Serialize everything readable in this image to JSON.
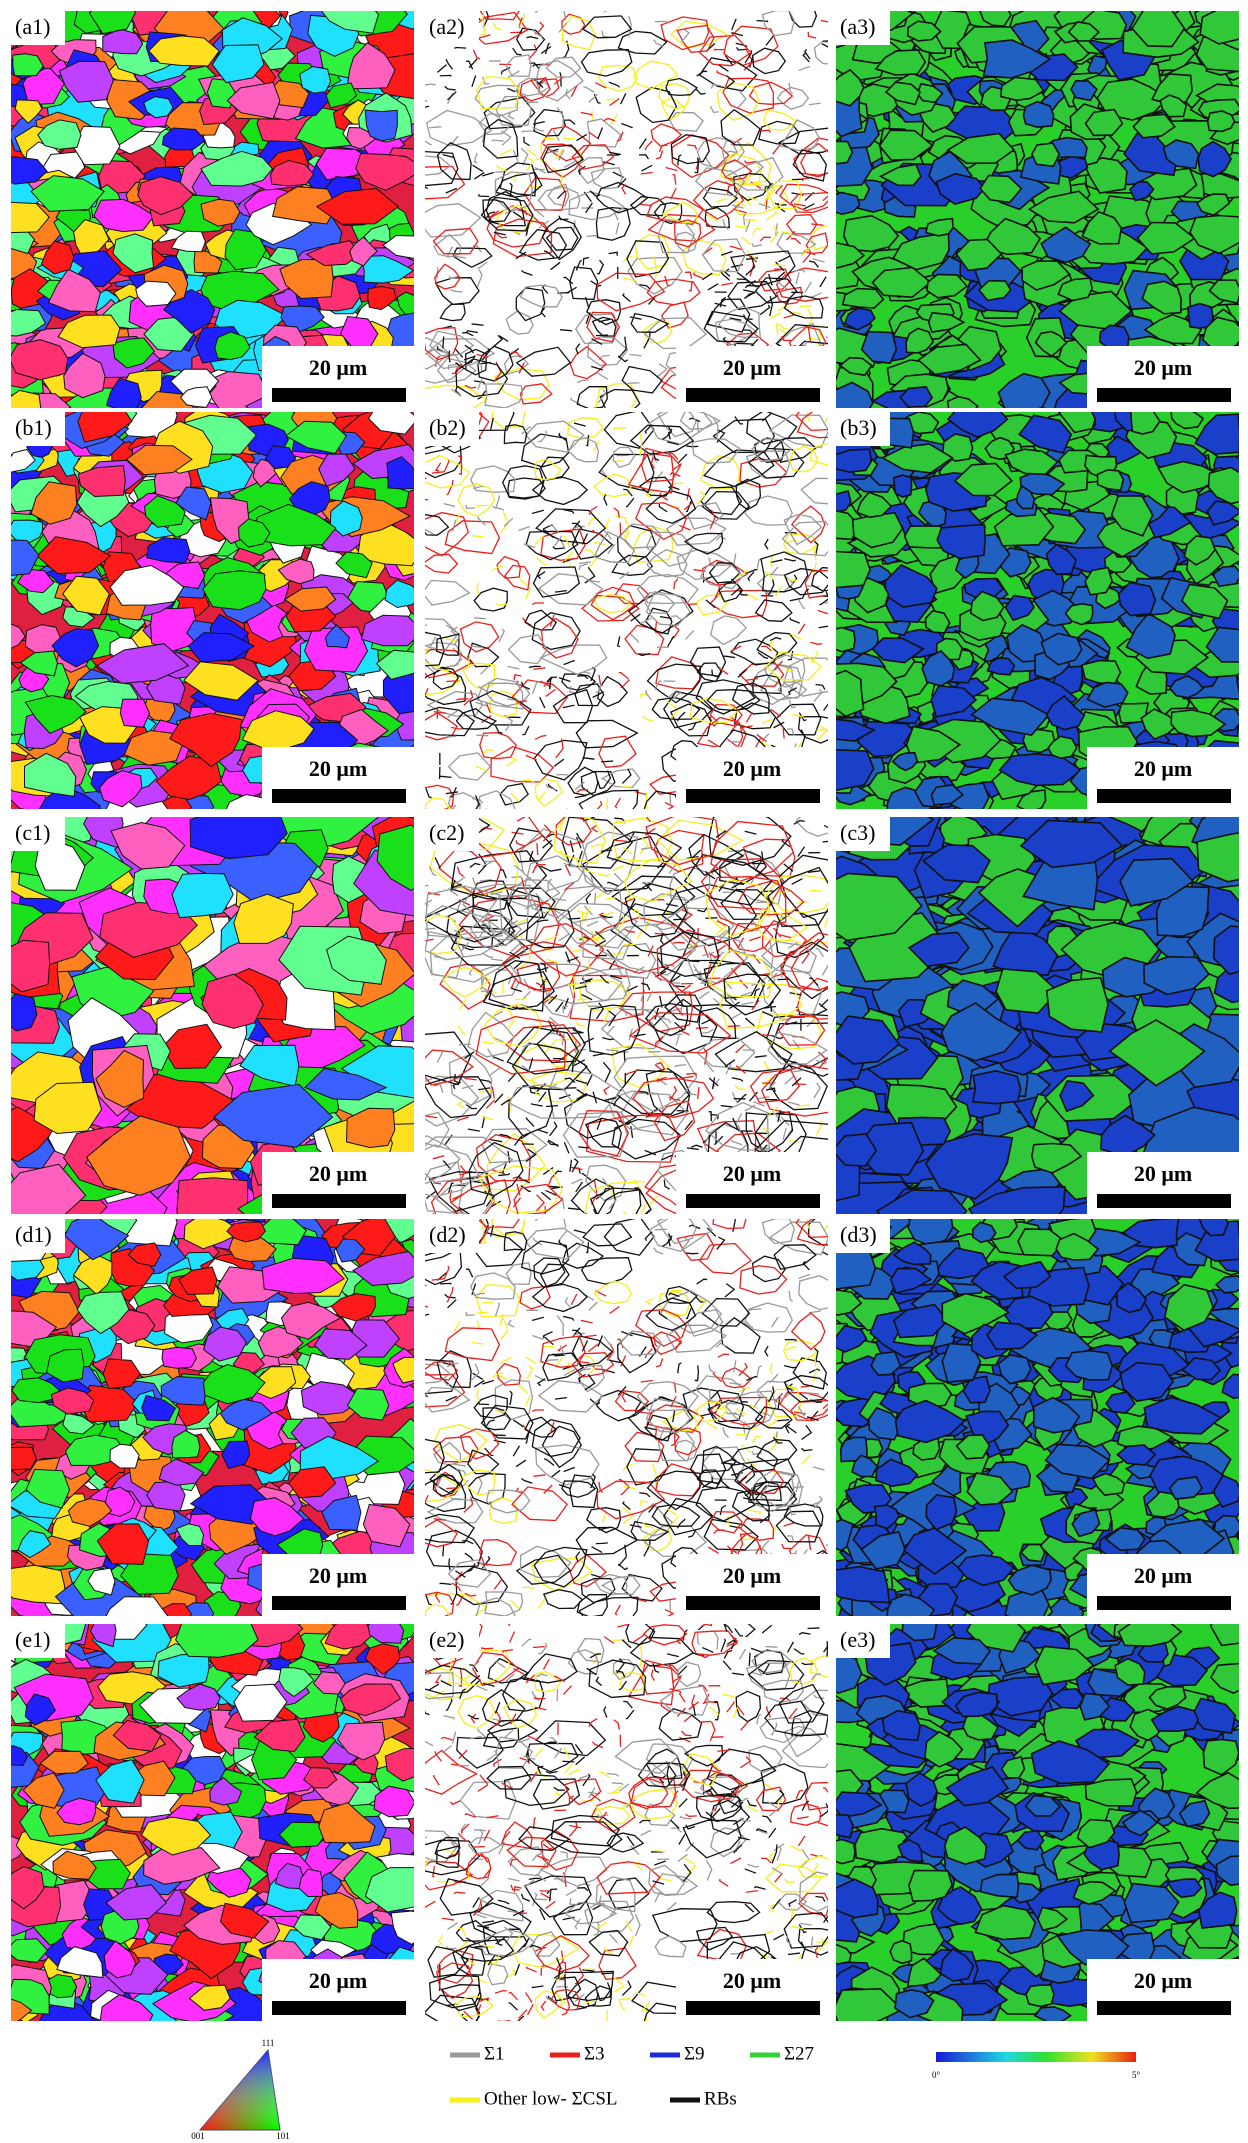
{
  "panels": [
    [
      "(a1)",
      "(a2)",
      "(a3)"
    ],
    [
      "(b1)",
      "(b2)",
      "(b3)"
    ],
    [
      "(c1)",
      "(c2)",
      "(c3)"
    ],
    [
      "(d1)",
      "(d2)",
      "(d3)"
    ],
    [
      "(e1)",
      "(e2)",
      "(e3)"
    ]
  ],
  "scale_bar_label": "20 μm",
  "ipf_key": {
    "top": "111",
    "left": "001",
    "right": "101"
  },
  "boundary_legend": [
    {
      "name": "Σ1",
      "color": "#999999"
    },
    {
      "name": "Σ3",
      "color": "#e8201c"
    },
    {
      "name": "Σ9",
      "color": "#1a2fd8"
    },
    {
      "name": "Σ27",
      "color": "#36d13a"
    },
    {
      "name": "Other low- ΣCSL",
      "color": "#f5ef1a"
    },
    {
      "name": "RBs",
      "color": "#111111"
    }
  ],
  "kam_colorbar": {
    "min_label": "0°",
    "max_label": "5°"
  }
}
